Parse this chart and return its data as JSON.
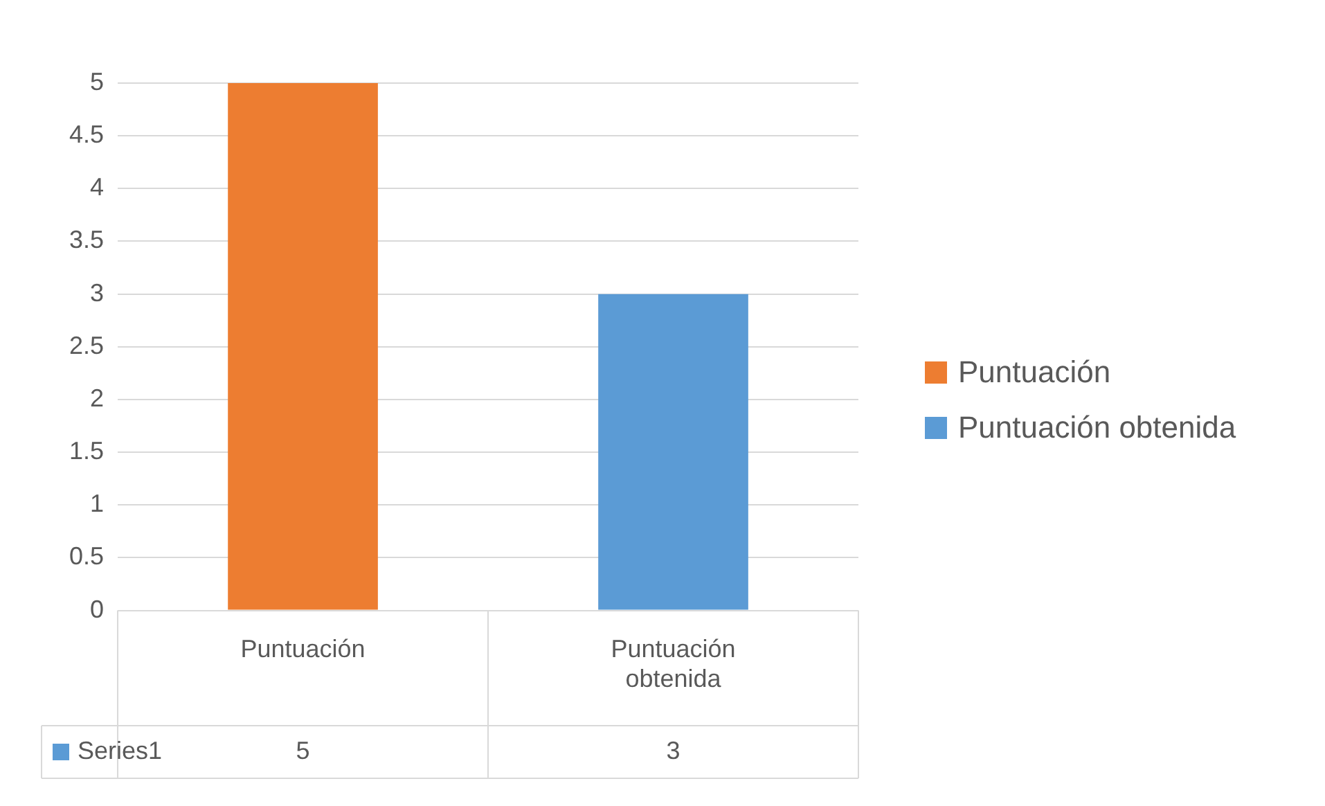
{
  "chart_data": {
    "type": "bar",
    "categories": [
      "Puntuación",
      "Puntuación obtenida"
    ],
    "series": [
      {
        "name": "Series1",
        "color": "#5b9bd5",
        "colors": [
          "#ed7d31",
          "#5b9bd5"
        ],
        "values": [
          5,
          3
        ]
      }
    ],
    "ylim": [
      0,
      5
    ],
    "yticks": [
      0,
      0.5,
      1,
      1.5,
      2,
      2.5,
      3,
      3.5,
      4,
      4.5,
      5
    ],
    "grid": "y",
    "legend": "bottom left",
    "data_labels": true
  }
}
